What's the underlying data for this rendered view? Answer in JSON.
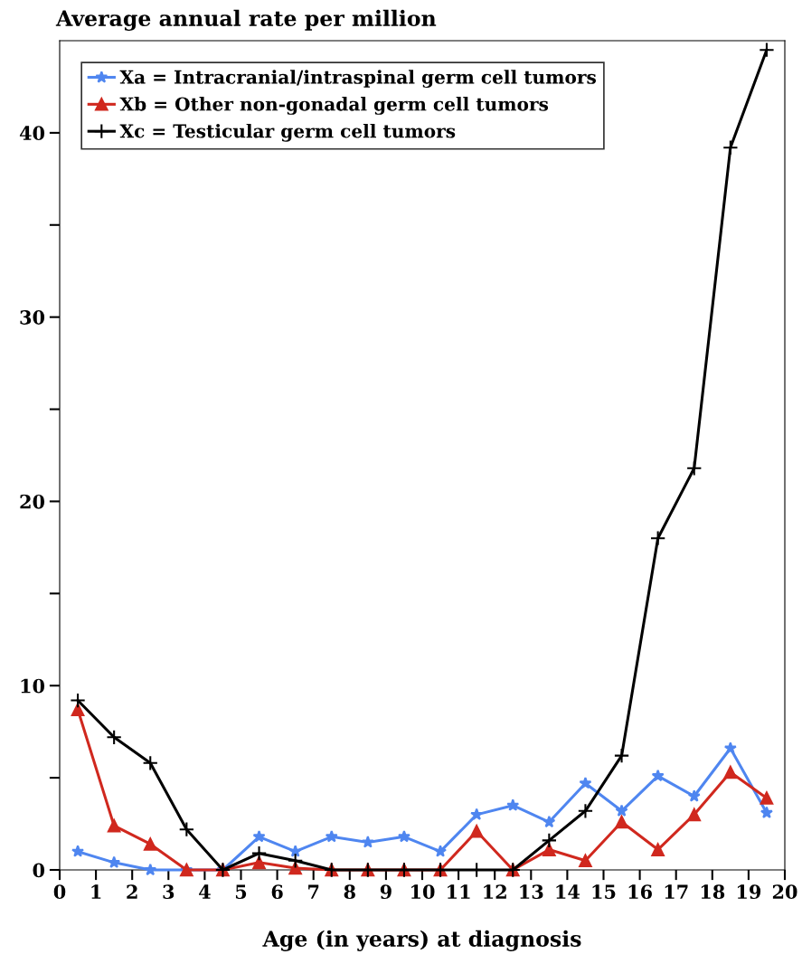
{
  "chart_data": {
    "type": "line",
    "ylabel": "Average annual rate per million",
    "xlabel": "Age (in years) at diagnosis",
    "x": [
      0.5,
      1.5,
      2.5,
      3.5,
      4.5,
      5.5,
      6.5,
      7.5,
      8.5,
      9.5,
      10.5,
      11.5,
      12.5,
      13.5,
      14.5,
      15.5,
      16.5,
      17.5,
      18.5,
      19.5
    ],
    "series": [
      {
        "name": "Xa = Intracranial/intraspinal germ cell tumors",
        "color": "#4f86f0",
        "marker": "star",
        "values": [
          1.0,
          0.4,
          0,
          0,
          0,
          1.8,
          1.0,
          1.8,
          1.5,
          1.8,
          1.0,
          3.0,
          3.5,
          2.6,
          4.7,
          3.2,
          5.1,
          4.0,
          6.6,
          3.1
        ]
      },
      {
        "name": "Xb = Other non-gonadal germ cell tumors",
        "color": "#d0281e",
        "marker": "triangle",
        "values": [
          8.7,
          2.4,
          1.4,
          0,
          0,
          0.4,
          0.1,
          0,
          0,
          0,
          0,
          2.1,
          0,
          1.1,
          0.5,
          2.6,
          1.1,
          3.0,
          5.3,
          3.9
        ]
      },
      {
        "name": "Xc = Testicular germ cell tumors",
        "color": "#000000",
        "marker": "cross",
        "values": [
          9.2,
          7.2,
          5.8,
          2.2,
          0,
          0.9,
          0.5,
          0,
          0,
          0,
          0,
          0,
          0,
          1.6,
          3.2,
          6.2,
          18.0,
          21.8,
          39.2,
          44.5
        ]
      }
    ],
    "xlim": [
      0,
      20
    ],
    "xticks": [
      0,
      1,
      2,
      3,
      4,
      5,
      6,
      7,
      8,
      9,
      10,
      11,
      12,
      13,
      14,
      15,
      16,
      17,
      18,
      19,
      20
    ],
    "ylim": [
      0,
      45
    ],
    "yticks": [
      0,
      {
        "value": 5,
        "label": null
      },
      10,
      {
        "value": 15,
        "label": null
      },
      20,
      {
        "value": 25,
        "label": null
      },
      30,
      {
        "value": 35,
        "label": null
      },
      40
    ],
    "grid": false,
    "legend": "top left",
    "line_style": "solid"
  }
}
